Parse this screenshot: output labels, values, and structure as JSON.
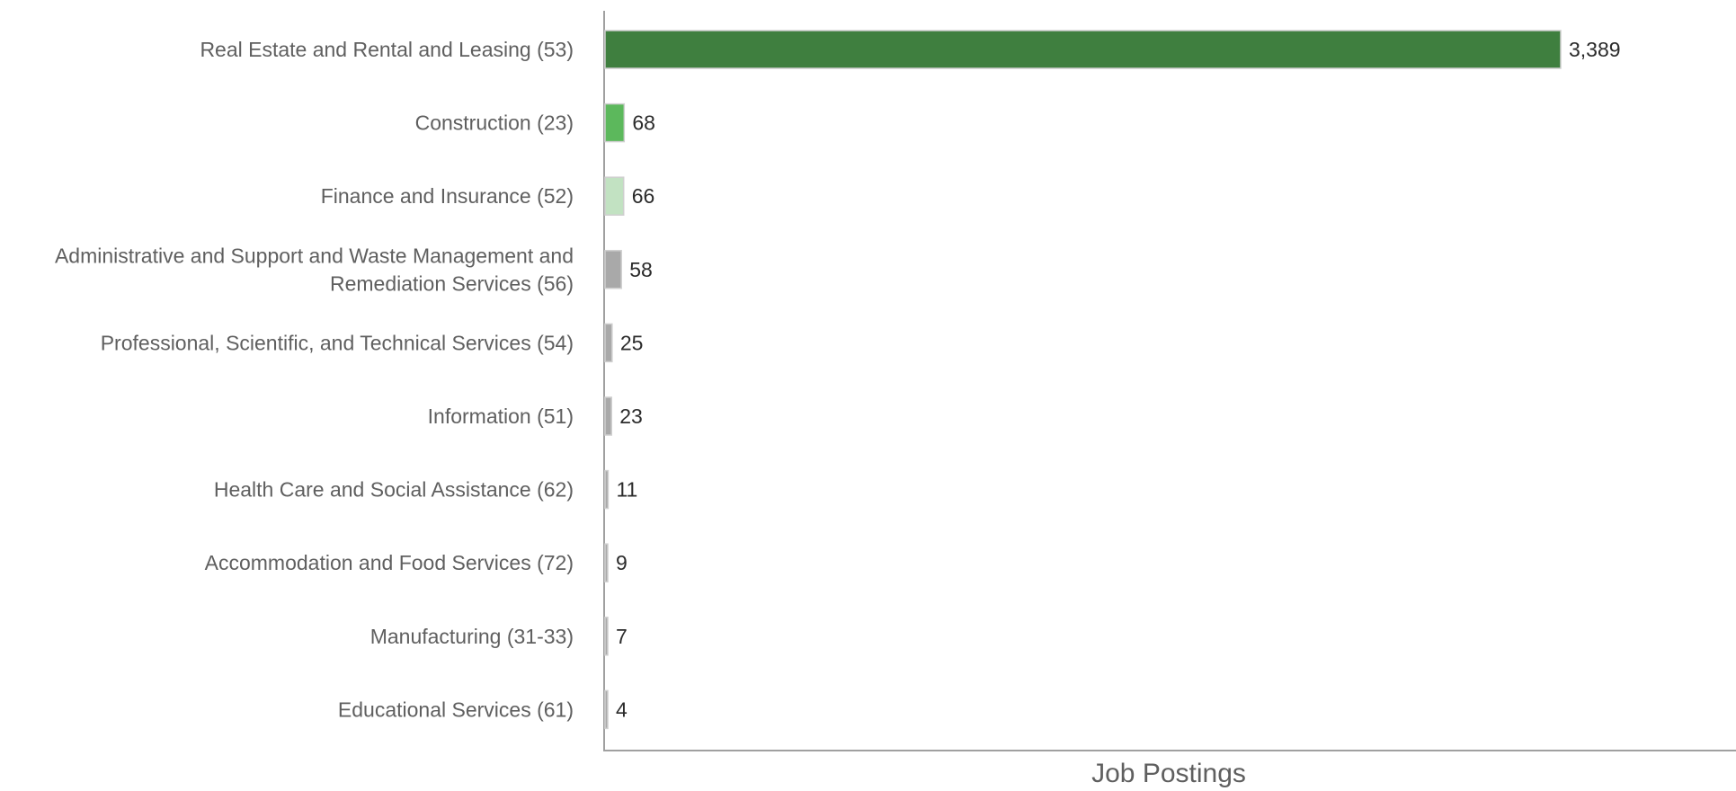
{
  "chart_data": {
    "type": "bar",
    "orientation": "horizontal",
    "title": "",
    "xlabel": "Job Postings",
    "ylabel": "",
    "xlim": [
      0,
      3389
    ],
    "grid": false,
    "legend": "none",
    "categories": [
      "Real Estate and Rental and Leasing (53)",
      "Construction (23)",
      "Finance and Insurance (52)",
      "Administrative and Support and Waste Management and Remediation Services (56)",
      "Professional, Scientific, and Technical Services (54)",
      "Information (51)",
      "Health Care and Social Assistance (62)",
      "Accommodation and Food Services (72)",
      "Manufacturing (31-33)",
      "Educational Services (61)"
    ],
    "category_lines": [
      [
        "Real Estate and Rental and Leasing (53)"
      ],
      [
        "Construction (23)"
      ],
      [
        "Finance and Insurance (52)"
      ],
      [
        "Administrative and Support and Waste Management and",
        "Remediation Services (56)"
      ],
      [
        "Professional, Scientific, and Technical Services (54)"
      ],
      [
        "Information (51)"
      ],
      [
        "Health Care and Social Assistance (62)"
      ],
      [
        "Accommodation and Food Services (72)"
      ],
      [
        "Manufacturing (31-33)"
      ],
      [
        "Educational Services (61)"
      ]
    ],
    "values": [
      3389,
      68,
      66,
      58,
      25,
      23,
      11,
      9,
      7,
      4
    ],
    "value_labels": [
      "3,389",
      "68",
      "66",
      "58",
      "25",
      "23",
      "11",
      "9",
      "7",
      "4"
    ],
    "colors": [
      "#3f7f3f",
      "#5cb85c",
      "#c2e2c2",
      "#a9a9a9",
      "#a9a9a9",
      "#a9a9a9",
      "#a9a9a9",
      "#a9a9a9",
      "#a9a9a9",
      "#a9a9a9"
    ],
    "bar_outline_color": "#cfcfcf",
    "axis_color": "#a0a0a0"
  }
}
